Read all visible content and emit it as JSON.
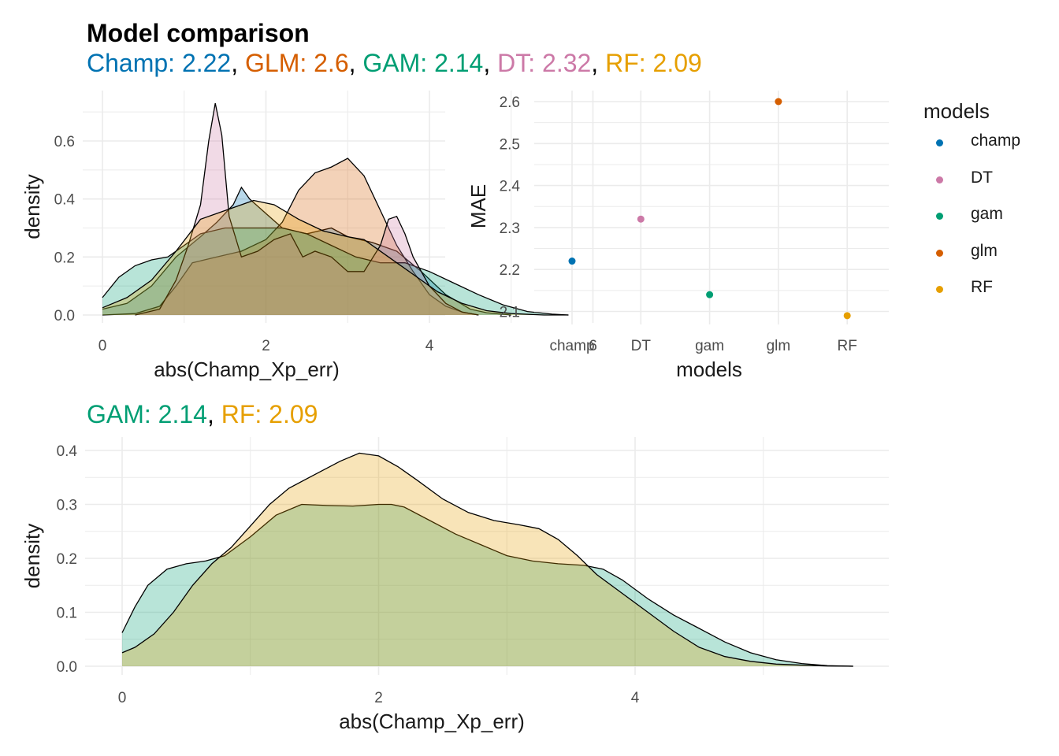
{
  "title": "Model comparison",
  "subtitle_top": [
    {
      "text": "Champ: 2.22",
      "color": "#0072B2"
    },
    {
      "text": ", ",
      "color": "#000000"
    },
    {
      "text": "GLM: 2.6",
      "color": "#D55E00"
    },
    {
      "text": ", ",
      "color": "#000000"
    },
    {
      "text": "GAM: 2.14",
      "color": "#009E73"
    },
    {
      "text": ", ",
      "color": "#000000"
    },
    {
      "text": "DT: 2.32",
      "color": "#CC79A7"
    },
    {
      "text": ", ",
      "color": "#000000"
    },
    {
      "text": "RF: 2.09",
      "color": "#E69F00"
    }
  ],
  "subtitle_bottom": [
    {
      "text": "GAM: 2.14",
      "color": "#009E73"
    },
    {
      "text": ", ",
      "color": "#000000"
    },
    {
      "text": "RF: 2.09",
      "color": "#E69F00"
    }
  ],
  "legend": {
    "title": "models",
    "items": [
      {
        "label": "champ",
        "color": "#0072B2"
      },
      {
        "label": "DT",
        "color": "#CC79A7"
      },
      {
        "label": "gam",
        "color": "#009E73"
      },
      {
        "label": "glm",
        "color": "#D55E00"
      },
      {
        "label": "RF",
        "color": "#E69F00"
      }
    ]
  },
  "chart_data": [
    {
      "type": "area",
      "xlabel": "abs(Champ_Xp_err)",
      "ylabel": "density",
      "xlim": [
        -0.3,
        6.25
      ],
      "ylim": [
        -0.03,
        0.78
      ],
      "xticks": [
        0,
        2,
        4,
        6
      ],
      "yticks": [
        0.0,
        0.2,
        0.4,
        0.6
      ],
      "ytick_labels": [
        "0.0",
        "0.2",
        "0.4",
        "0.6"
      ],
      "grid": true,
      "series": [
        {
          "name": "champ",
          "color": "#0072B2",
          "x": [
            0,
            0.3,
            0.6,
            0.9,
            1.2,
            1.4,
            1.6,
            1.7,
            1.8,
            2.0,
            2.2,
            2.5,
            2.8,
            3.0,
            3.3,
            3.6,
            3.9,
            4.2,
            4.5,
            4.7,
            5.0
          ],
          "y": [
            0.02,
            0.04,
            0.1,
            0.2,
            0.27,
            0.32,
            0.38,
            0.44,
            0.4,
            0.35,
            0.3,
            0.28,
            0.3,
            0.27,
            0.25,
            0.22,
            0.15,
            0.07,
            0.02,
            0.008,
            0.0
          ]
        },
        {
          "name": "glm",
          "color": "#D55E00",
          "x": [
            0,
            0.4,
            0.7,
            0.9,
            1.1,
            1.4,
            1.7,
            2.0,
            2.2,
            2.4,
            2.6,
            2.8,
            3.0,
            3.2,
            3.4,
            3.6,
            3.8,
            4.0,
            4.2,
            4.4,
            4.6
          ],
          "y": [
            0.0,
            0.005,
            0.03,
            0.1,
            0.18,
            0.2,
            0.22,
            0.26,
            0.32,
            0.43,
            0.49,
            0.51,
            0.54,
            0.48,
            0.36,
            0.24,
            0.15,
            0.07,
            0.03,
            0.01,
            0.0
          ]
        },
        {
          "name": "gam",
          "color": "#009E73",
          "x": [
            0,
            0.2,
            0.4,
            0.6,
            0.8,
            1.0,
            1.2,
            1.5,
            1.8,
            2.0,
            2.2,
            2.5,
            2.8,
            3.1,
            3.4,
            3.7,
            4.0,
            4.3,
            4.6,
            4.9,
            5.2,
            5.5,
            5.7
          ],
          "y": [
            0.06,
            0.13,
            0.17,
            0.19,
            0.2,
            0.24,
            0.28,
            0.3,
            0.3,
            0.3,
            0.3,
            0.28,
            0.24,
            0.2,
            0.18,
            0.18,
            0.15,
            0.11,
            0.07,
            0.035,
            0.012,
            0.003,
            0.0
          ]
        },
        {
          "name": "DT",
          "color": "#CC79A7",
          "x": [
            0.4,
            0.7,
            0.9,
            1.05,
            1.2,
            1.3,
            1.38,
            1.46,
            1.55,
            1.7,
            1.9,
            2.1,
            2.3,
            2.45,
            2.6,
            2.8,
            3.0,
            3.2,
            3.4,
            3.5,
            3.6,
            3.7,
            3.8,
            4.0,
            4.2,
            4.4,
            4.6
          ],
          "y": [
            0.0,
            0.02,
            0.12,
            0.24,
            0.38,
            0.6,
            0.73,
            0.62,
            0.34,
            0.2,
            0.22,
            0.26,
            0.28,
            0.2,
            0.22,
            0.2,
            0.15,
            0.15,
            0.24,
            0.33,
            0.34,
            0.28,
            0.2,
            0.1,
            0.04,
            0.01,
            0.0
          ]
        },
        {
          "name": "RF",
          "color": "#E69F00",
          "x": [
            0,
            0.3,
            0.6,
            0.9,
            1.2,
            1.5,
            1.85,
            2.1,
            2.4,
            2.7,
            3.0,
            3.2,
            3.5,
            3.8,
            4.1,
            4.4,
            4.7,
            5.0,
            5.4,
            5.7
          ],
          "y": [
            0.025,
            0.06,
            0.12,
            0.22,
            0.33,
            0.36,
            0.395,
            0.38,
            0.33,
            0.29,
            0.27,
            0.26,
            0.2,
            0.14,
            0.08,
            0.04,
            0.015,
            0.005,
            0.0,
            0.0
          ]
        }
      ]
    },
    {
      "type": "scatter",
      "xlabel": "models",
      "ylabel": "MAE",
      "categories": [
        "champ",
        "DT",
        "gam",
        "glm",
        "RF"
      ],
      "values": [
        2.22,
        2.32,
        2.14,
        2.6,
        2.09
      ],
      "colors": [
        "#0072B2",
        "#CC79A7",
        "#009E73",
        "#D55E00",
        "#E69F00"
      ],
      "ylim": [
        2.065,
        2.625
      ],
      "yticks": [
        2.1,
        2.2,
        2.3,
        2.4,
        2.5,
        2.6
      ],
      "ytick_labels": [
        "2.1",
        "2.2",
        "2.3",
        "2.4",
        "2.5",
        "2.6"
      ],
      "grid": true
    },
    {
      "type": "area",
      "xlabel": "abs(Champ_Xp_err)",
      "ylabel": "density",
      "xlim": [
        -0.285,
        5.97
      ],
      "ylim": [
        -0.02,
        0.416
      ],
      "xticks": [
        0,
        2,
        4
      ],
      "yticks": [
        0.0,
        0.1,
        0.2,
        0.3,
        0.4
      ],
      "ytick_labels": [
        "0.0",
        "0.1",
        "0.2",
        "0.3",
        "0.4"
      ],
      "grid": true,
      "series": [
        {
          "name": "gam",
          "color": "#009E73",
          "x": [
            0,
            0.1,
            0.2,
            0.35,
            0.5,
            0.65,
            0.8,
            1.0,
            1.2,
            1.4,
            1.6,
            1.8,
            2.0,
            2.1,
            2.2,
            2.4,
            2.6,
            2.8,
            3.0,
            3.2,
            3.4,
            3.6,
            3.75,
            3.9,
            4.1,
            4.3,
            4.5,
            4.7,
            4.9,
            5.1,
            5.3,
            5.5,
            5.7
          ],
          "y": [
            0.062,
            0.11,
            0.15,
            0.18,
            0.19,
            0.195,
            0.205,
            0.24,
            0.28,
            0.3,
            0.298,
            0.297,
            0.3,
            0.3,
            0.295,
            0.27,
            0.245,
            0.225,
            0.205,
            0.195,
            0.19,
            0.187,
            0.18,
            0.16,
            0.125,
            0.095,
            0.07,
            0.045,
            0.025,
            0.012,
            0.005,
            0.001,
            0.0
          ]
        },
        {
          "name": "RF",
          "color": "#E69F00",
          "x": [
            0,
            0.1,
            0.25,
            0.4,
            0.55,
            0.7,
            0.85,
            1.0,
            1.15,
            1.3,
            1.5,
            1.7,
            1.85,
            2.0,
            2.15,
            2.3,
            2.5,
            2.7,
            2.9,
            3.1,
            3.25,
            3.4,
            3.55,
            3.7,
            3.9,
            4.1,
            4.3,
            4.5,
            4.7,
            4.9,
            5.1,
            5.3,
            5.5,
            5.7
          ],
          "y": [
            0.025,
            0.035,
            0.06,
            0.1,
            0.15,
            0.19,
            0.22,
            0.26,
            0.3,
            0.33,
            0.355,
            0.38,
            0.395,
            0.39,
            0.37,
            0.345,
            0.31,
            0.285,
            0.27,
            0.262,
            0.255,
            0.235,
            0.205,
            0.17,
            0.135,
            0.1,
            0.065,
            0.035,
            0.018,
            0.009,
            0.004,
            0.002,
            0.0005,
            0.0
          ]
        }
      ]
    }
  ]
}
